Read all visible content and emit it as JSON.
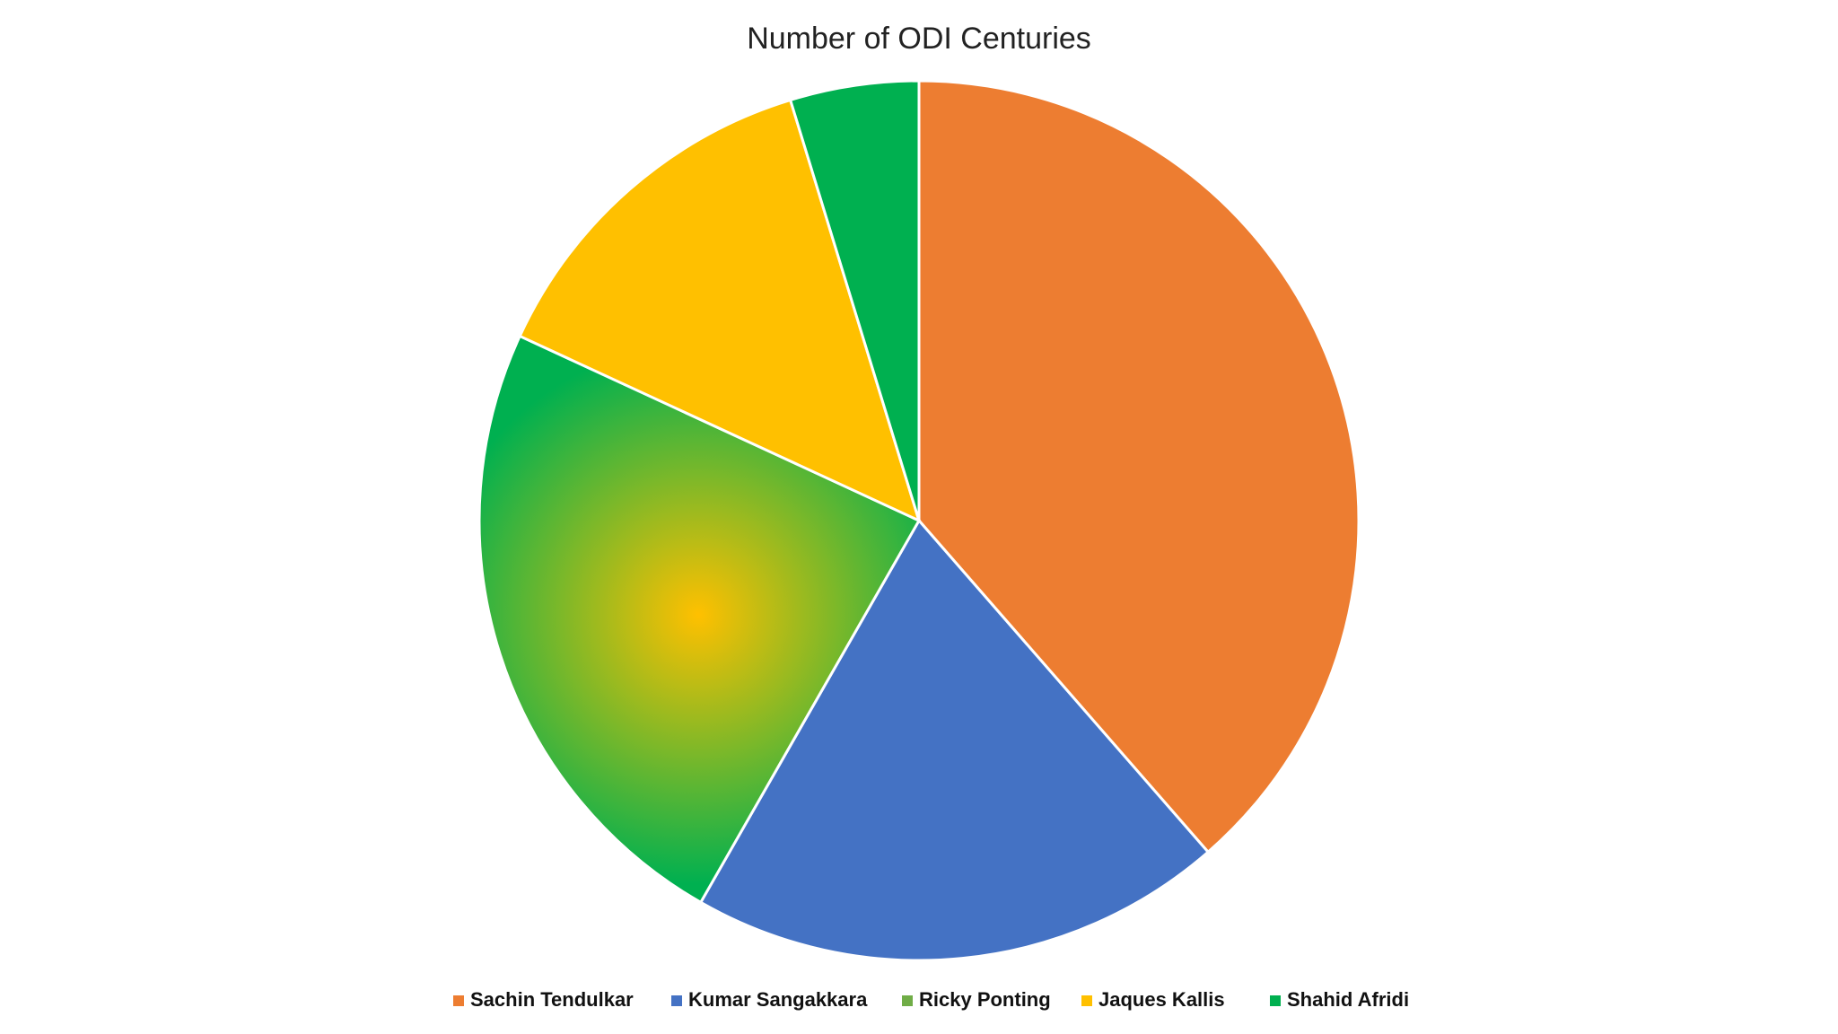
{
  "chart_data": {
    "type": "pie",
    "title": "Number of ODI Centuries",
    "categories": [
      "Sachin Tendulkar",
      "Kumar Sangakkara",
      "Ricky Ponting",
      "Jaques Kallis",
      "Shahid Afridi"
    ],
    "values": [
      49,
      25,
      30,
      17,
      6
    ],
    "colors": [
      "#ED7D31",
      "#4472C4",
      "#70AD47",
      "#FFC000",
      "#00B050"
    ],
    "ponting_gradient": {
      "center": "#FFC000",
      "edge": "#00B050"
    },
    "start_angle": "12 o'clock",
    "direction": "clockwise",
    "legend_position": "bottom"
  }
}
